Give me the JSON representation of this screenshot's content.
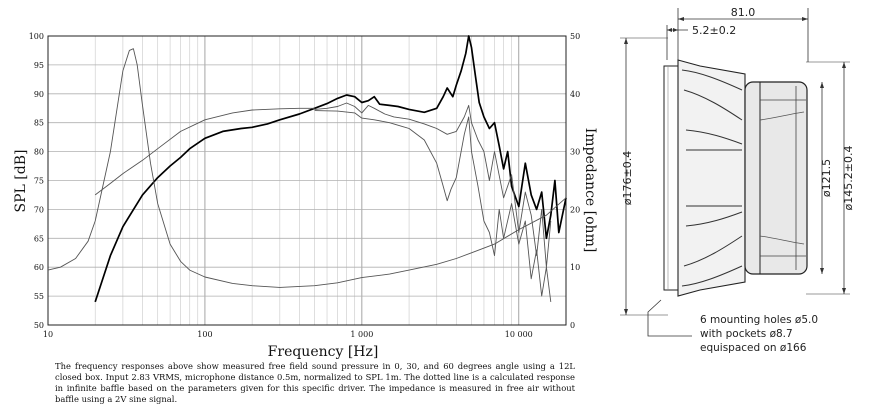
{
  "chart_data": {
    "type": "line",
    "xscale": "log",
    "xlim": [
      10,
      20000
    ],
    "ylim": [
      50,
      100
    ],
    "y2lim": [
      0,
      50
    ],
    "xlabel": "Frequency [Hz]",
    "ylabel": "SPL [dB]",
    "y2label": "Impedance [ohm]",
    "grid": true,
    "x_tick_labels": [
      {
        "value": 10,
        "label": "10"
      },
      {
        "value": 100,
        "label": "100"
      },
      {
        "value": 1000,
        "label": "1 000"
      },
      {
        "value": 10000,
        "label": "10 000"
      }
    ],
    "y_ticks": [
      50,
      55,
      60,
      65,
      70,
      75,
      80,
      85,
      90,
      95,
      100
    ],
    "y2_ticks": [
      0,
      10,
      20,
      30,
      40,
      50
    ],
    "series": [
      {
        "key": "spl_0deg",
        "axis": "left",
        "style": "thick",
        "x": [
          20,
          25,
          30,
          40,
          50,
          60,
          70,
          80,
          100,
          130,
          170,
          200,
          250,
          300,
          400,
          500,
          600,
          700,
          800,
          900,
          1000,
          1100,
          1200,
          1300,
          1500,
          1700,
          2000,
          2500,
          3000,
          3300,
          3500,
          3800,
          4000,
          4300,
          4600,
          4800,
          5000,
          5300,
          5600,
          6000,
          6500,
          7000,
          7500,
          8000,
          8500,
          9000,
          10000,
          11000,
          12000,
          13000,
          14000,
          15000,
          16000,
          17000,
          18000,
          20000
        ],
        "y": [
          54,
          62,
          67,
          72.5,
          75.5,
          77.5,
          79,
          80.5,
          82.3,
          83.5,
          84,
          84.2,
          84.8,
          85.5,
          86.5,
          87.5,
          88.3,
          89.2,
          89.8,
          89.5,
          88.5,
          88.8,
          89.5,
          88.2,
          88,
          87.8,
          87.3,
          86.8,
          87.5,
          89.5,
          91,
          89.5,
          91.5,
          94,
          97,
          100,
          98,
          93,
          88.5,
          86,
          84,
          85,
          81,
          77,
          80,
          74,
          70.5,
          78,
          72.5,
          70,
          73,
          65,
          69,
          75,
          66,
          72
        ]
      },
      {
        "key": "spl_30deg",
        "axis": "left",
        "style": "thin",
        "x": [
          500,
          600,
          700,
          800,
          900,
          1000,
          1100,
          1200,
          1400,
          1600,
          2000,
          2500,
          3000,
          3500,
          4000,
          4500,
          4800,
          5000,
          5500,
          6000,
          6500,
          7000,
          8000,
          9000,
          10000,
          11000,
          12000,
          13000,
          14000,
          15000,
          16000
        ],
        "y": [
          87.3,
          87.5,
          87.8,
          88.4,
          87.8,
          86.7,
          88,
          87.5,
          86.5,
          86,
          85.6,
          84.8,
          84,
          83,
          83.5,
          86,
          88,
          85,
          82,
          80,
          75,
          80,
          72,
          76,
          66,
          73,
          69,
          62,
          70,
          60,
          68
        ]
      },
      {
        "key": "spl_60deg",
        "axis": "left",
        "style": "thin",
        "x": [
          500,
          700,
          900,
          1000,
          1200,
          1500,
          2000,
          2500,
          3000,
          3300,
          3500,
          3700,
          4000,
          4500,
          4800,
          5000,
          5500,
          6000,
          6500,
          7000,
          7500,
          8000,
          9000,
          10000,
          11000,
          12000,
          13000,
          14000,
          15000,
          16000
        ],
        "y": [
          87.1,
          87,
          86.7,
          85.8,
          85.5,
          85,
          84,
          82,
          78,
          74,
          71.5,
          73.5,
          75.5,
          83,
          86,
          80,
          74,
          68,
          66,
          62,
          70,
          65,
          71,
          64,
          68,
          58,
          63,
          55,
          60,
          54
        ]
      },
      {
        "key": "spl_infinite_baffle",
        "axis": "left",
        "style": "thin",
        "x": [
          20,
          25,
          30,
          40,
          50,
          70,
          100,
          150,
          200,
          300,
          400,
          500
        ],
        "y": [
          72.5,
          74.5,
          76.2,
          78.5,
          80.5,
          83.5,
          85.5,
          86.7,
          87.2,
          87.4,
          87.5,
          87.5
        ]
      },
      {
        "key": "impedance",
        "axis": "right",
        "style": "thin",
        "x": [
          10,
          12,
          15,
          18,
          20,
          25,
          30,
          33,
          35,
          37,
          40,
          45,
          50,
          60,
          70,
          80,
          100,
          150,
          200,
          300,
          500,
          700,
          1000,
          1500,
          2000,
          3000,
          4000,
          5000,
          7000,
          10000,
          15000,
          20000
        ],
        "y": [
          9.5,
          10,
          11.5,
          14.5,
          18,
          30,
          44,
          47.5,
          47.8,
          45,
          38,
          28,
          21,
          14,
          11,
          9.5,
          8.3,
          7.2,
          6.8,
          6.5,
          6.8,
          7.3,
          8.2,
          8.8,
          9.5,
          10.5,
          11.5,
          12.5,
          14,
          16.5,
          19,
          22
        ]
      }
    ]
  },
  "drawing": {
    "overall_depth": "81.0",
    "mounting_flange": "5.2±0.2",
    "outer_diameter": "ø176±0.4",
    "magnet_diameter": "ø121.5",
    "cutout_diameter": "ø145.2±0.4",
    "mounting_note": [
      "6 mounting holes ø5.0",
      "with pockets ø8.7",
      "equispaced on ø166"
    ]
  },
  "caption": "The frequency responses above show measured free field sound pressure in 0, 30, and 60 degrees angle using a 12L closed box. Input 2.83 VRMS, microphone distance 0.5m, normalized to SPL 1m. The dotted line is a calculated response in infinite baffle based on the parameters given for this specific driver. The impedance is measured in free air without baffle using a 2V sine signal."
}
